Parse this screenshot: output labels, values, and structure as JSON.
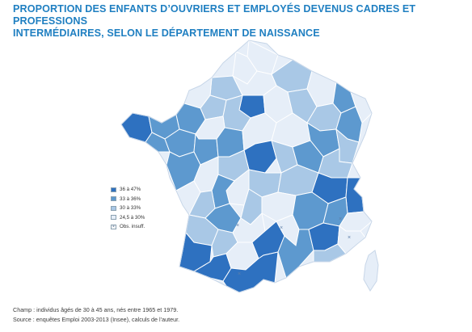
{
  "title": {
    "line1": "PROPORTION DES ENFANTS D’OUVRIERS ET EMPLOYÉS DEVENUS CADRES ET PROFESSIONS",
    "line2": "INTERMÉDIAIRES, SELON LE DÉPARTEMENT DE NAISSANCE"
  },
  "legend": [
    {
      "label": "36 à 47%",
      "color": "#2e71c0"
    },
    {
      "label": "33 à 36%",
      "color": "#5d99cf"
    },
    {
      "label": "30 à 33%",
      "color": "#a9c8e6"
    },
    {
      "label": "24,5 à 30%",
      "color": "#e6eef8"
    },
    {
      "label": "Obs. insuff.",
      "color": "#ffffff",
      "icon": "x-mark-icon"
    }
  ],
  "footer": {
    "champ": "Champ : individus âgés de 30 à 45 ans, nés entre 1965 et 1979.",
    "source": "Source : enquêtes Emploi 2003-2013 (Insee), calculs de l’auteur."
  }
}
